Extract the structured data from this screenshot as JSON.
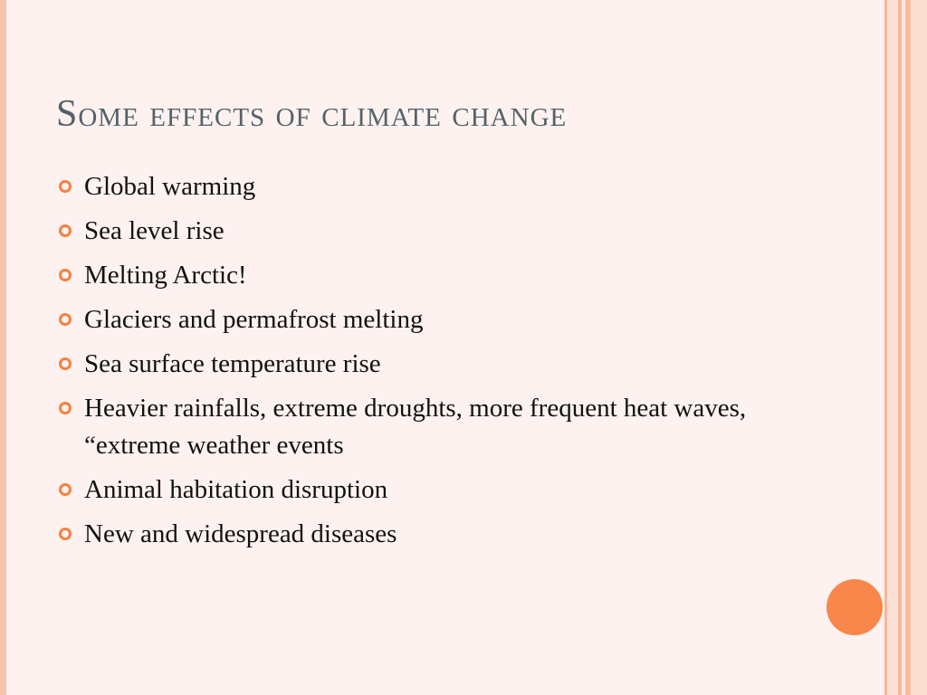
{
  "slide": {
    "title": "Some effects of climate change",
    "bullets": [
      "Global warming",
      "Sea level rise",
      "Melting Arctic!",
      "Glaciers and permafrost melting",
      "Sea surface temperature rise",
      "Heavier rainfalls,  extreme droughts, more frequent heat waves, “extreme weather events",
      "Animal habitation disruption",
      "New and widespread diseases"
    ]
  },
  "colors": {
    "background": "#fdf2ef",
    "accent": "#f9864a",
    "title": "#55616a",
    "text": "#111111"
  }
}
